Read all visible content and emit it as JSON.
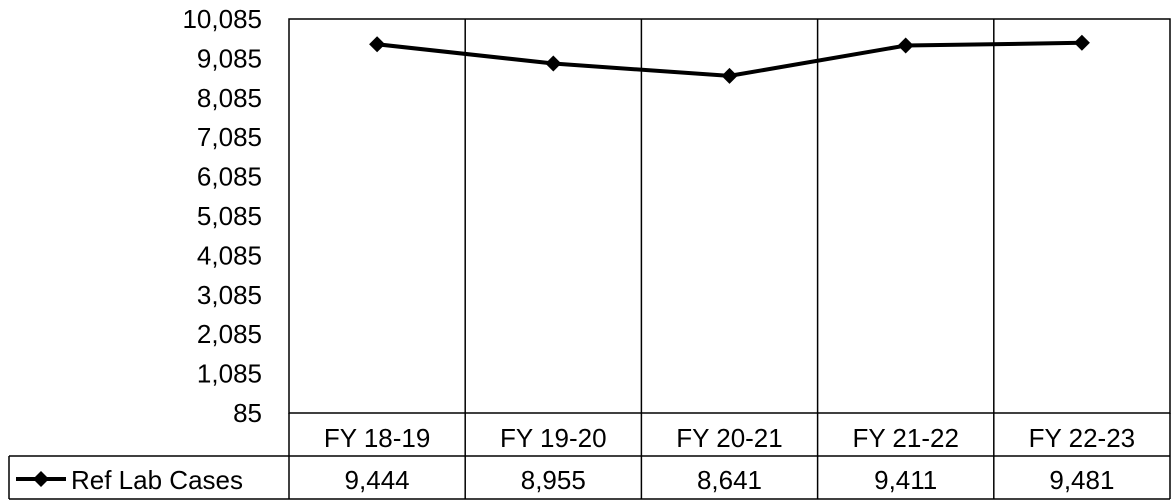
{
  "chart_data": {
    "type": "line",
    "categories": [
      "FY 18-19",
      "FY 19-20",
      "FY 20-21",
      "FY 21-22",
      "FY 22-23"
    ],
    "series": [
      {
        "name": "Ref Lab Cases",
        "values": [
          9444,
          8955,
          8641,
          9411,
          9481
        ],
        "value_labels": [
          "9,444",
          "8,955",
          "8,641",
          "9,411",
          "9,481"
        ]
      }
    ],
    "y_ticks": [
      "85",
      "1,085",
      "2,085",
      "3,085",
      "4,085",
      "5,085",
      "6,085",
      "7,085",
      "8,085",
      "9,085",
      "10,085"
    ],
    "ylim": [
      85,
      10085
    ],
    "grid": "vertical",
    "legend": "data-table-left",
    "marker": "diamond",
    "colors": {
      "line": "#000000",
      "grid": "#000000",
      "background": "#ffffff"
    }
  }
}
